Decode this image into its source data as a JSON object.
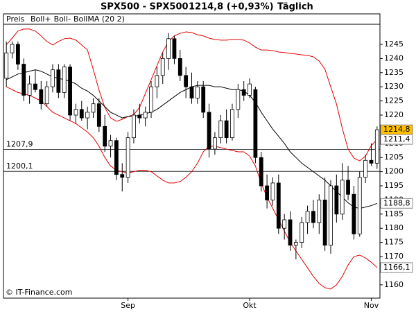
{
  "chart_data": {
    "type": "candlestick",
    "title": "SPX500 - SPX500",
    "quote": "1214,8 (+0,93%)",
    "period": "Täglich",
    "price_label": "Preis",
    "source": "© IT-Finance.com",
    "categories": [
      null,
      null,
      null,
      null,
      null,
      null,
      null,
      null,
      null,
      null,
      null,
      null,
      null,
      null,
      null,
      null,
      null,
      null,
      null,
      null,
      null,
      "Sep",
      null,
      null,
      null,
      null,
      null,
      null,
      null,
      null,
      null,
      null,
      null,
      null,
      null,
      null,
      null,
      null,
      null,
      null,
      null,
      null,
      "Okt",
      null,
      null,
      null,
      null,
      null,
      null,
      null,
      null,
      null,
      null,
      null,
      null,
      null,
      null,
      null,
      null,
      null,
      null,
      null,
      null,
      "Nov",
      null
    ],
    "candles": {
      "color": "#ffc000",
      "open": [
        1233,
        1242,
        1245,
        1238,
        1227,
        1231,
        1229,
        1224,
        1230,
        1236,
        1228,
        1237,
        1220,
        1222,
        1219,
        1221,
        1224,
        1216,
        1209,
        1211,
        1199,
        1198,
        1212,
        1220,
        1219,
        1221,
        1230,
        1234,
        1240,
        1247,
        1240,
        1234,
        1230,
        1226,
        1230,
        1221,
        1208,
        1212,
        1218,
        1212,
        1222,
        1229,
        1227,
        1229,
        1205,
        1195,
        1190,
        1196,
        1180,
        1183,
        1174,
        1175,
        1182,
        1186,
        1182,
        1190,
        1174,
        1195,
        1185,
        1197,
        1192,
        1178,
        1198,
        1204,
        1203
      ],
      "high": [
        1246,
        1246,
        1246,
        1240,
        1234,
        1236,
        1232,
        1232,
        1238,
        1238,
        1238,
        1238,
        1224,
        1225,
        1223,
        1226,
        1226,
        1220,
        1213,
        1212,
        1203,
        1214,
        1222,
        1224,
        1223,
        1232,
        1237,
        1242,
        1249,
        1248,
        1243,
        1237,
        1235,
        1232,
        1232,
        1224,
        1214,
        1220,
        1222,
        1224,
        1231,
        1232,
        1233,
        1230,
        1207,
        1199,
        1198,
        1199,
        1185,
        1186,
        1176,
        1184,
        1188,
        1190,
        1192,
        1198,
        1197,
        1199,
        1203,
        1202,
        1195,
        1200,
        1206,
        1210,
        1216
      ],
      "low": [
        1230,
        1240,
        1236,
        1225,
        1224,
        1228,
        1222,
        1223,
        1228,
        1226,
        1226,
        1218,
        1217,
        1218,
        1215,
        1219,
        1214,
        1207,
        1205,
        1197,
        1193,
        1196,
        1210,
        1217,
        1216,
        1219,
        1226,
        1231,
        1236,
        1238,
        1232,
        1226,
        1224,
        1224,
        1219,
        1205,
        1206,
        1210,
        1210,
        1211,
        1219,
        1225,
        1226,
        1203,
        1193,
        1187,
        1188,
        1178,
        1176,
        1172,
        1169,
        1173,
        1178,
        1180,
        1178,
        1172,
        1171,
        1182,
        1183,
        1190,
        1176,
        1177,
        1196,
        1202,
        1201
      ],
      "close": [
        1242,
        1245,
        1238,
        1227,
        1231,
        1229,
        1224,
        1230,
        1236,
        1228,
        1237,
        1220,
        1222,
        1219,
        1221,
        1224,
        1216,
        1209,
        1211,
        1199,
        1198,
        1212,
        1220,
        1219,
        1221,
        1230,
        1234,
        1240,
        1247,
        1240,
        1234,
        1230,
        1226,
        1230,
        1221,
        1208,
        1212,
        1218,
        1212,
        1222,
        1229,
        1227,
        1231,
        1205,
        1195,
        1190,
        1196,
        1180,
        1183,
        1174,
        1175,
        1182,
        1186,
        1182,
        1190,
        1174,
        1195,
        1185,
        1197,
        1192,
        1178,
        1198,
        1204,
        1203,
        1214.8
      ],
      "value_labels": [
        null,
        null,
        null,
        null,
        null,
        null,
        null,
        null,
        null,
        null,
        null,
        null,
        null,
        null,
        null,
        null,
        null,
        null,
        null,
        null,
        null,
        null,
        null,
        null,
        null,
        null,
        null,
        null,
        null,
        null,
        null,
        null,
        null,
        null,
        null,
        null,
        null,
        null,
        null,
        null,
        null,
        null,
        null,
        null,
        null,
        null,
        null,
        null,
        null,
        null,
        null,
        null,
        null,
        null,
        null,
        null,
        null,
        null,
        null,
        null,
        null,
        null,
        null,
        null,
        "1214,8"
      ]
    },
    "series": [
      {
        "name": "Boll+",
        "color": "#e00000",
        "values": [
          1244.8,
          1247.2,
          1249.7,
          1250.4,
          1250.4,
          1249.7,
          1248,
          1246,
          1244.8,
          1246,
          1247,
          1247.2,
          1246.5,
          1244.8,
          1243,
          1236.2,
          1228.8,
          1222.7,
          1219,
          1217.8,
          1218.5,
          1219.5,
          1220.2,
          1222.7,
          1227.6,
          1232.5,
          1237.4,
          1242.3,
          1246,
          1248,
          1248.9,
          1249.4,
          1249.2,
          1248.4,
          1248,
          1247.2,
          1246.7,
          1246.5,
          1246.5,
          1246.7,
          1246.7,
          1246.5,
          1245.5,
          1244,
          1243,
          1243,
          1242.8,
          1242.3,
          1242.1,
          1241.8,
          1241.6,
          1241.3,
          1241.1,
          1240.6,
          1239.1,
          1236.2,
          1230,
          1223.9,
          1215.3,
          1208,
          1204.8,
          1203.8,
          1205.5,
          1209.2,
          1211.4
        ],
        "value_labels": [
          null,
          null,
          null,
          null,
          null,
          null,
          null,
          null,
          null,
          null,
          null,
          null,
          null,
          null,
          null,
          null,
          null,
          null,
          null,
          null,
          null,
          null,
          null,
          null,
          null,
          null,
          null,
          null,
          null,
          null,
          null,
          null,
          null,
          null,
          null,
          null,
          null,
          null,
          null,
          null,
          null,
          null,
          null,
          null,
          null,
          null,
          null,
          null,
          null,
          null,
          null,
          null,
          null,
          null,
          null,
          null,
          null,
          null,
          null,
          null,
          null,
          null,
          null,
          null,
          "1211,4"
        ]
      },
      {
        "name": "Boll-",
        "color": "#e00000",
        "values": [
          1230,
          1229,
          1228,
          1227.5,
          1227,
          1226,
          1225,
          1223,
          1221,
          1220,
          1219,
          1218,
          1217,
          1215.5,
          1214,
          1212,
          1209,
          1205,
          1202,
          1200.5,
          1200,
          1199.5,
          1200,
          1200.5,
          1200.5,
          1200,
          1198.5,
          1197,
          1196,
          1196,
          1196.5,
          1198,
          1200,
          1203,
          1207,
          1209,
          1209,
          1208.5,
          1208,
          1207.5,
          1207,
          1207,
          1205.5,
          1202,
          1196,
          1191,
          1187,
          1183,
          1179,
          1175,
          1172,
          1169,
          1166,
          1163,
          1160.5,
          1159,
          1158.5,
          1160,
          1163,
          1167,
          1170,
          1170.5,
          1169.5,
          1168,
          1166.1
        ],
        "value_labels": [
          null,
          null,
          null,
          null,
          null,
          null,
          null,
          null,
          null,
          null,
          null,
          null,
          null,
          null,
          null,
          null,
          null,
          null,
          null,
          null,
          null,
          null,
          null,
          null,
          null,
          null,
          null,
          null,
          null,
          null,
          null,
          null,
          null,
          null,
          null,
          null,
          null,
          null,
          null,
          null,
          null,
          null,
          null,
          null,
          null,
          null,
          null,
          null,
          null,
          null,
          null,
          null,
          null,
          null,
          null,
          null,
          null,
          null,
          null,
          null,
          null,
          null,
          null,
          null,
          "1166,1"
        ]
      },
      {
        "name": "BollMA (20 2)",
        "color": "#000000",
        "values": [
          1232.5,
          1233.5,
          1234.5,
          1235,
          1235.5,
          1236,
          1235.5,
          1234.5,
          1233.5,
          1233,
          1232.5,
          1232,
          1231,
          1229.5,
          1228.5,
          1227,
          1225,
          1223,
          1221,
          1220,
          1219,
          1219.5,
          1219.5,
          1220,
          1220.5,
          1221,
          1222,
          1223.5,
          1225,
          1226.5,
          1228,
          1229,
          1230,
          1230.5,
          1230.5,
          1230.5,
          1230,
          1230,
          1229.5,
          1229,
          1229,
          1228.5,
          1227,
          1224.5,
          1221,
          1218,
          1215,
          1212.5,
          1210,
          1207,
          1205,
          1203,
          1201.5,
          1200,
          1198.5,
          1197,
          1195,
          1193,
          1191,
          1189,
          1187.5,
          1187,
          1187.5,
          1188,
          1188.8
        ],
        "value_labels": [
          null,
          null,
          null,
          null,
          null,
          null,
          null,
          null,
          null,
          null,
          null,
          null,
          null,
          null,
          null,
          null,
          null,
          null,
          null,
          null,
          null,
          null,
          null,
          null,
          null,
          null,
          null,
          null,
          null,
          null,
          null,
          null,
          null,
          null,
          null,
          null,
          null,
          null,
          null,
          null,
          null,
          null,
          null,
          null,
          null,
          null,
          null,
          null,
          null,
          null,
          null,
          null,
          null,
          null,
          null,
          null,
          null,
          null,
          null,
          null,
          null,
          null,
          null,
          null,
          "1188,8"
        ]
      }
    ],
    "hlines": [
      {
        "value": 1207.9,
        "label": "1207,9"
      },
      {
        "value": 1200.1,
        "label": "1200,1"
      }
    ],
    "ylim": [
      1155.3,
      1252.1
    ],
    "yticks": [
      1160,
      1165,
      1170,
      1175,
      1180,
      1185,
      1190,
      1195,
      1200,
      1205,
      1210,
      1215,
      1220,
      1225,
      1230,
      1235,
      1240,
      1245
    ]
  }
}
